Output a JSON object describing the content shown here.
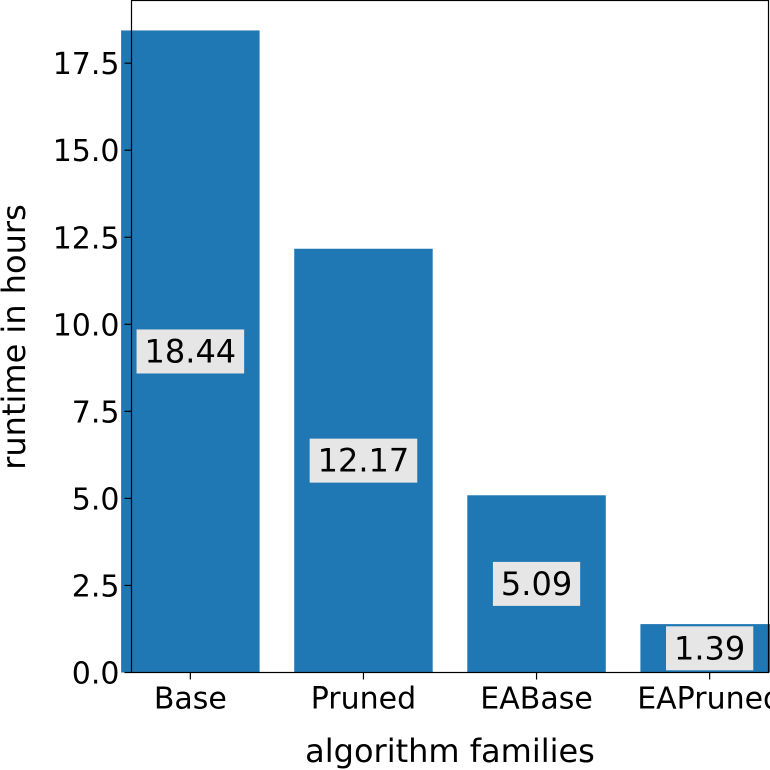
{
  "chart_data": {
    "type": "bar",
    "categories": [
      "Base",
      "Pruned",
      "EABase",
      "EAPruned"
    ],
    "values": [
      18.44,
      12.17,
      5.09,
      1.39
    ],
    "data_labels": [
      "18.44",
      "12.17",
      "5.09",
      "1.39"
    ],
    "xlabel": "algorithm families",
    "ylabel": "runtime in hours",
    "ylim": [
      0,
      19.3
    ],
    "yticks": [
      0.0,
      2.5,
      5.0,
      7.5,
      10.0,
      12.5,
      15.0,
      17.5
    ],
    "ytick_labels": [
      "0.0",
      "2.5",
      "5.0",
      "7.5",
      "10.0",
      "12.5",
      "15.0",
      "17.5"
    ],
    "grid": false,
    "bar_color": "#1f77b4",
    "label_box_color": "#e6e6e6"
  }
}
